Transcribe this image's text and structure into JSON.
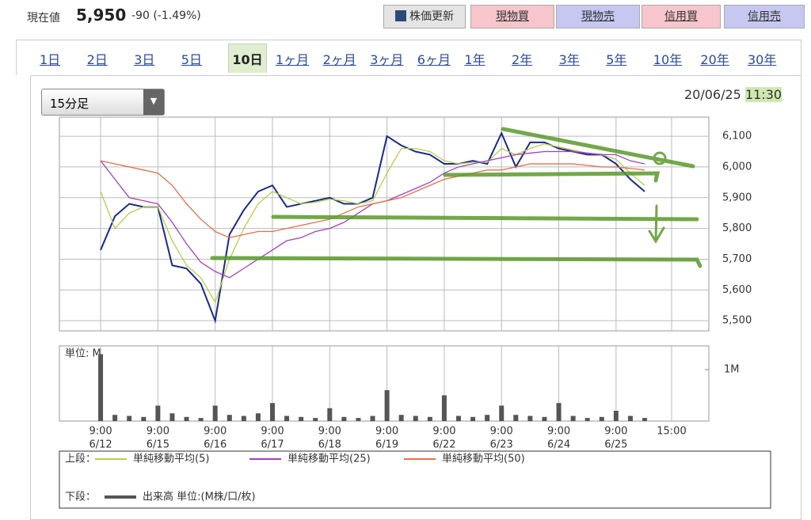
{
  "header": {
    "label": "現在値",
    "price": "5,950",
    "change": "-90 (-1.49%)",
    "buttons": [
      "株価更新",
      "現物買",
      "現物売",
      "信用買",
      "信用売"
    ]
  },
  "tabs": {
    "items": [
      "1日",
      "2日",
      "3日",
      "5日",
      "10日",
      "1ヶ月",
      "2ヶ月",
      "3ヶ月",
      "6ヶ月",
      "1年",
      "2年",
      "3年",
      "5年",
      "10年",
      "20年",
      "30年"
    ],
    "active": "10日"
  },
  "dropdown": "15分足",
  "timestamp": {
    "date": "20/06/25",
    "time": "11:30"
  },
  "chart_data": [
    {
      "type": "line",
      "x": [
        0,
        0.25,
        0.5,
        0.75,
        1,
        1.25,
        1.5,
        1.75,
        2,
        2.25,
        2.5,
        2.75,
        3,
        3.25,
        3.5,
        3.75,
        4,
        4.25,
        4.5,
        4.75,
        5,
        5.25,
        5.5,
        5.75,
        6,
        6.25,
        6.5,
        6.75,
        7,
        7.25,
        7.5,
        7.75,
        8,
        8.25,
        8.5,
        8.75,
        9,
        9.25,
        9.5
      ],
      "xlim": [
        -0.72,
        10.62
      ],
      "ylim": [
        5467,
        6162
      ],
      "yticks": [
        {
          "value": 5500,
          "label": "5,500"
        },
        {
          "value": 5600,
          "label": "5,600"
        },
        {
          "value": 5700,
          "label": "5,700"
        },
        {
          "value": 5800,
          "label": "5,800"
        },
        {
          "value": 5900,
          "label": "5,900"
        },
        {
          "value": 6000,
          "label": "6,000"
        },
        {
          "value": 6100,
          "label": "6,100"
        }
      ],
      "grid": true,
      "series": [
        {
          "color": "#1a2a8a",
          "values": [
            5730,
            5840,
            5880,
            5870,
            5870,
            5680,
            5670,
            5620,
            5500,
            5780,
            5860,
            5920,
            5940,
            5870,
            5880,
            5890,
            5900,
            5880,
            5880,
            5900,
            6100,
            6070,
            6050,
            6040,
            6010,
            6010,
            6020,
            6010,
            6110,
            6000,
            6080,
            6080,
            6060,
            6050,
            6040,
            6040,
            6010,
            5960,
            5920
          ]
        },
        {
          "name": "単純移動平均(5)",
          "color": "#b5cf4a",
          "values": [
            5920,
            5800,
            5850,
            5870,
            5870,
            5760,
            5680,
            5640,
            5560,
            5700,
            5800,
            5880,
            5920,
            5900,
            5880,
            5885,
            5895,
            5890,
            5880,
            5890,
            5980,
            6060,
            6060,
            6050,
            6020,
            6010,
            6015,
            6015,
            6060,
            6040,
            6060,
            6075,
            6065,
            6055,
            6045,
            6040,
            6025,
            5980,
            5940
          ]
        },
        {
          "name": "単純移動平均(25)",
          "color": "#a040c0",
          "values": [
            6020,
            5960,
            5900,
            5890,
            5880,
            5820,
            5750,
            5690,
            5660,
            5640,
            5670,
            5700,
            5730,
            5760,
            5770,
            5790,
            5800,
            5820,
            5850,
            5880,
            5890,
            5910,
            5930,
            5950,
            5980,
            6000,
            6010,
            6020,
            6030,
            6040,
            6045,
            6050,
            6050,
            6050,
            6045,
            6040,
            6040,
            6020,
            6010
          ]
        },
        {
          "name": "単純移動平均(50)",
          "color": "#e8704a",
          "values": [
            6020,
            6010,
            6000,
            5990,
            5980,
            5940,
            5880,
            5830,
            5790,
            5770,
            5780,
            5790,
            5790,
            5800,
            5810,
            5820,
            5830,
            5850,
            5870,
            5880,
            5890,
            5900,
            5920,
            5940,
            5960,
            5970,
            5980,
            5990,
            5990,
            6000,
            6010,
            6010,
            6010,
            6010,
            6005,
            6000,
            6000,
            5995,
            5990
          ]
        }
      ],
      "legend_label": "上段："
    },
    {
      "type": "bar",
      "unit_label": "単位: M",
      "x": [
        0,
        0.25,
        0.5,
        0.75,
        1,
        1.25,
        1.5,
        1.75,
        2,
        2.25,
        2.5,
        2.75,
        3,
        3.25,
        3.5,
        3.75,
        4,
        4.25,
        4.5,
        4.75,
        5,
        5.25,
        5.5,
        5.75,
        6,
        6.25,
        6.5,
        6.75,
        7,
        7.25,
        7.5,
        7.75,
        8,
        8.25,
        8.5,
        8.75,
        9,
        9.25,
        9.5
      ],
      "xlim": [
        -0.72,
        10.62
      ],
      "xticks": [
        {
          "value": 0,
          "label": "9:00"
        },
        {
          "value": 1,
          "label": "9:00"
        },
        {
          "value": 2,
          "label": "9:00"
        },
        {
          "value": 3,
          "label": "9:00"
        },
        {
          "value": 4,
          "label": "9:00"
        },
        {
          "value": 5,
          "label": "9:00"
        },
        {
          "value": 6,
          "label": "9:00"
        },
        {
          "value": 7,
          "label": "9:00"
        },
        {
          "value": 8,
          "label": "9:00"
        },
        {
          "value": 9,
          "label": "9:00"
        },
        {
          "value": 9.97,
          "label": "15:00"
        }
      ],
      "xtick_dates": [
        "6/12",
        "6/15",
        "6/16",
        "6/17",
        "6/18",
        "6/19",
        "6/22",
        "6/23",
        "6/24",
        "6/25"
      ],
      "ylim": [
        0,
        1.46
      ],
      "yticks": [
        {
          "value": 1,
          "label": "1M"
        }
      ],
      "series": [
        {
          "name": "出来高 単位:(M株/口/枚)",
          "color": "#555555",
          "values": [
            1.3,
            0.12,
            0.1,
            0.08,
            0.3,
            0.15,
            0.08,
            0.06,
            0.3,
            0.12,
            0.1,
            0.15,
            0.35,
            0.1,
            0.08,
            0.06,
            0.25,
            0.08,
            0.06,
            0.1,
            0.6,
            0.12,
            0.1,
            0.08,
            0.5,
            0.1,
            0.08,
            0.12,
            0.3,
            0.12,
            0.1,
            0.08,
            0.35,
            0.1,
            0.06,
            0.08,
            0.2,
            0.1,
            0.06
          ]
        }
      ],
      "legend_label": "下段："
    }
  ]
}
